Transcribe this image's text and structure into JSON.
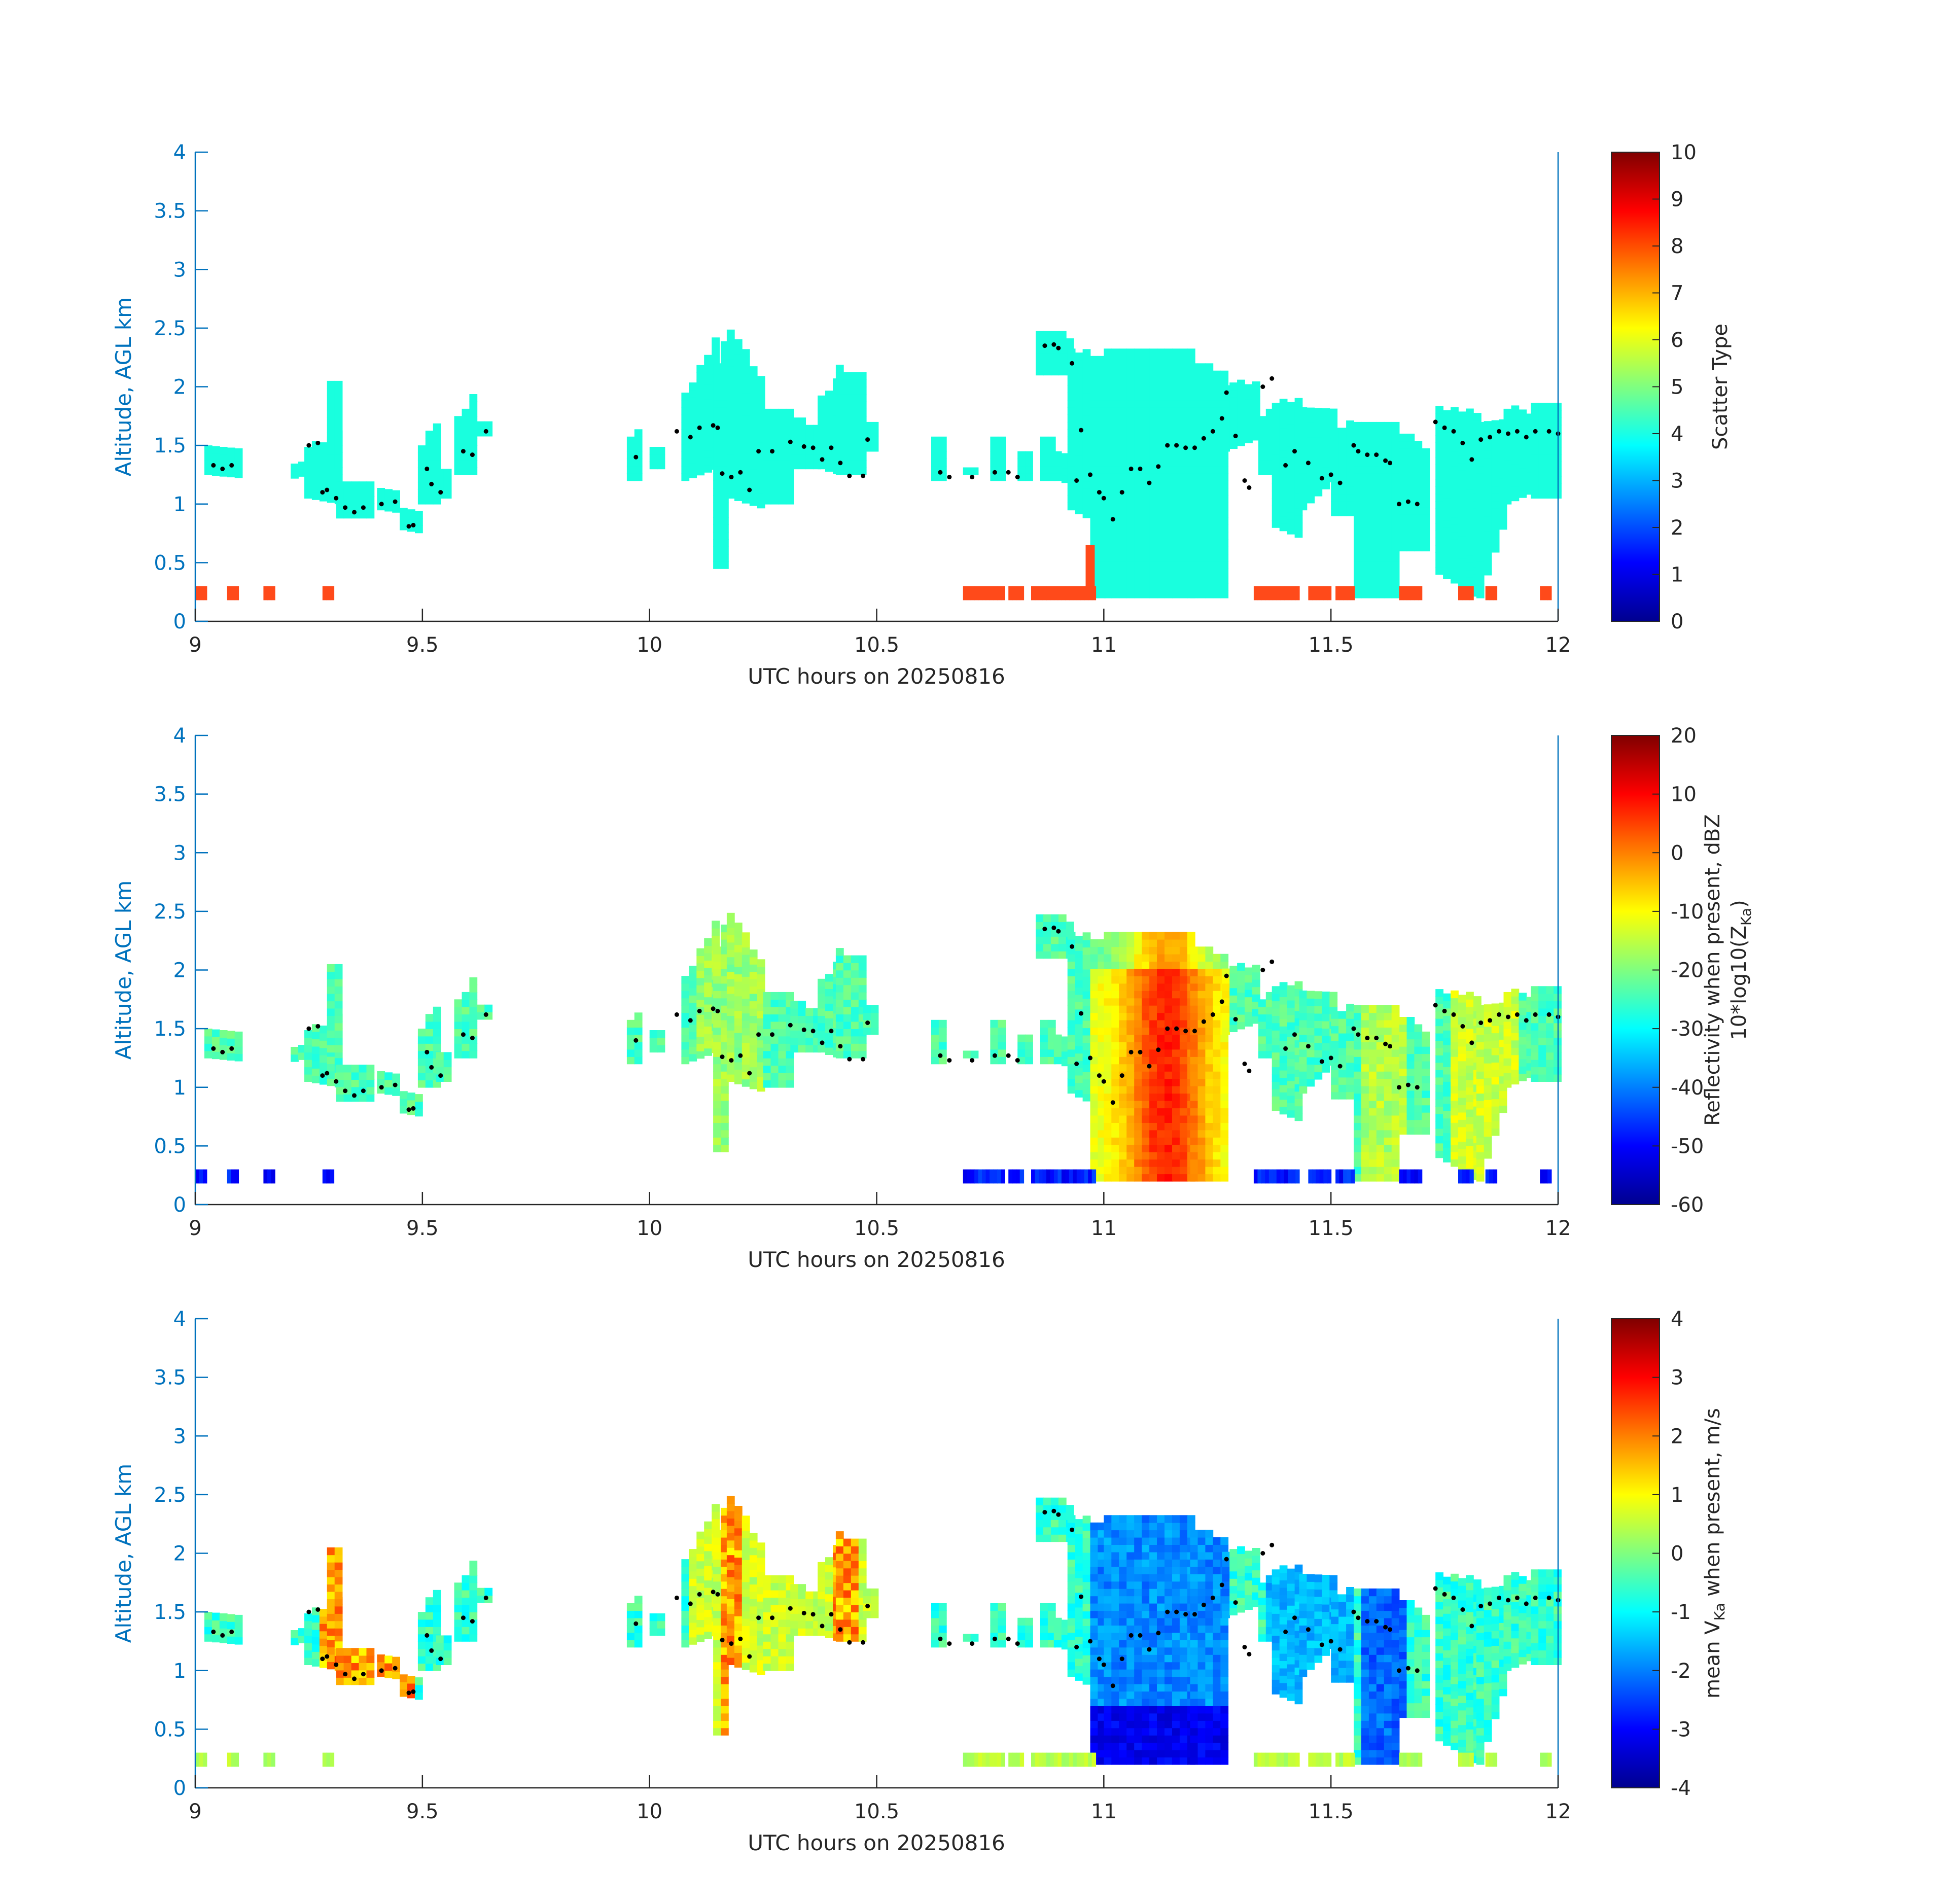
{
  "chart_data": [
    {
      "type": "heatmap",
      "xlabel": "UTC hours on 20250816",
      "ylabel": "Altitude, AGL km",
      "xlim": [
        9,
        12
      ],
      "ylim": [
        0,
        4
      ],
      "xticks": [
        "9",
        "9.5",
        "10",
        "10.5",
        "11",
        "11.5",
        "12"
      ],
      "yticks": [
        "0",
        "0.5",
        "1",
        "1.5",
        "2",
        "2.5",
        "3",
        "3.5",
        "4"
      ],
      "colorbar": {
        "label_lines": [
          "Scatter Type"
        ],
        "range": [
          0,
          10
        ],
        "ticks": [
          "0",
          "1",
          "2",
          "3",
          "4",
          "5",
          "6",
          "7",
          "8",
          "9",
          "10"
        ],
        "colormap": "jet"
      },
      "fields": "scatter type 4 (cloud) throughout echo; type ~8 in low-level clutter and near cloud base"
    },
    {
      "type": "heatmap",
      "xlabel": "UTC hours on 20250816",
      "ylabel": "Altitude, AGL km",
      "xlim": [
        9,
        12
      ],
      "ylim": [
        0,
        4
      ],
      "xticks": [
        "9",
        "9.5",
        "10",
        "10.5",
        "11",
        "11.5",
        "12"
      ],
      "yticks": [
        "0",
        "0.5",
        "1",
        "1.5",
        "2",
        "2.5",
        "3",
        "3.5",
        "4"
      ],
      "colorbar": {
        "label_lines": [
          "Reflectivity when present, dBZ",
          "10*log10(Z",
          "Ka",
          ")"
        ],
        "range": [
          -60,
          20
        ],
        "ticks": [
          "-60",
          "-50",
          "-40",
          "-30",
          "-20",
          "-10",
          "0",
          "10",
          "20"
        ],
        "colormap": "jet"
      },
      "peak_dbz_near_11_1_utc": 5
    },
    {
      "type": "heatmap",
      "xlabel": "UTC hours on 20250816",
      "ylabel": "Altitude, AGL km",
      "xlim": [
        9,
        12
      ],
      "ylim": [
        0,
        4
      ],
      "xticks": [
        "9",
        "9.5",
        "10",
        "10.5",
        "11",
        "11.5",
        "12"
      ],
      "yticks": [
        "0",
        "0.5",
        "1",
        "1.5",
        "2",
        "2.5",
        "3",
        "3.5",
        "4"
      ],
      "colorbar": {
        "label_lines": [
          "mean V",
          "Ka",
          " when present, m/s"
        ],
        "range": [
          -4,
          4
        ],
        "ticks": [
          "-4",
          "-3",
          "-2",
          "-1",
          "0",
          "1",
          "2",
          "3",
          "4"
        ],
        "colormap": "jet"
      },
      "min_velocity_near_11_1_utc": -3.5
    }
  ],
  "cloud_base_points": [
    [
      9.04,
      1.33
    ],
    [
      9.06,
      1.3
    ],
    [
      9.08,
      1.33
    ],
    [
      9.25,
      1.5
    ],
    [
      9.27,
      1.52
    ],
    [
      9.28,
      1.1
    ],
    [
      9.29,
      1.12
    ],
    [
      9.31,
      1.05
    ],
    [
      9.33,
      0.97
    ],
    [
      9.35,
      0.93
    ],
    [
      9.37,
      0.97
    ],
    [
      9.41,
      1.0
    ],
    [
      9.44,
      1.02
    ],
    [
      9.47,
      0.81
    ],
    [
      9.48,
      0.82
    ],
    [
      9.51,
      1.3
    ],
    [
      9.52,
      1.17
    ],
    [
      9.54,
      1.1
    ],
    [
      9.59,
      1.45
    ],
    [
      9.61,
      1.42
    ],
    [
      9.64,
      1.62
    ],
    [
      9.97,
      1.4
    ],
    [
      10.06,
      1.62
    ],
    [
      10.09,
      1.57
    ],
    [
      10.11,
      1.65
    ],
    [
      10.14,
      1.67
    ],
    [
      10.15,
      1.65
    ],
    [
      10.16,
      1.26
    ],
    [
      10.18,
      1.23
    ],
    [
      10.2,
      1.27
    ],
    [
      10.22,
      1.12
    ],
    [
      10.24,
      1.45
    ],
    [
      10.27,
      1.45
    ],
    [
      10.31,
      1.53
    ],
    [
      10.34,
      1.49
    ],
    [
      10.36,
      1.48
    ],
    [
      10.38,
      1.38
    ],
    [
      10.4,
      1.48
    ],
    [
      10.42,
      1.35
    ],
    [
      10.44,
      1.24
    ],
    [
      10.47,
      1.24
    ],
    [
      10.48,
      1.55
    ],
    [
      10.64,
      1.27
    ],
    [
      10.66,
      1.23
    ],
    [
      10.71,
      1.23
    ],
    [
      10.76,
      1.27
    ],
    [
      10.79,
      1.27
    ],
    [
      10.81,
      1.23
    ],
    [
      10.87,
      2.35
    ],
    [
      10.89,
      2.36
    ],
    [
      10.9,
      2.33
    ],
    [
      10.93,
      2.2
    ],
    [
      10.94,
      1.2
    ],
    [
      10.95,
      1.63
    ],
    [
      10.97,
      1.25
    ],
    [
      10.99,
      1.1
    ],
    [
      11.0,
      1.05
    ],
    [
      11.02,
      0.87
    ],
    [
      11.04,
      1.1
    ],
    [
      11.06,
      1.3
    ],
    [
      11.08,
      1.3
    ],
    [
      11.1,
      1.18
    ],
    [
      11.12,
      1.32
    ],
    [
      11.14,
      1.5
    ],
    [
      11.16,
      1.5
    ],
    [
      11.18,
      1.48
    ],
    [
      11.2,
      1.48
    ],
    [
      11.22,
      1.56
    ],
    [
      11.24,
      1.62
    ],
    [
      11.26,
      1.73
    ],
    [
      11.27,
      1.95
    ],
    [
      11.29,
      1.58
    ],
    [
      11.31,
      1.2
    ],
    [
      11.32,
      1.14
    ],
    [
      11.35,
      2.0
    ],
    [
      11.37,
      2.07
    ],
    [
      11.4,
      1.33
    ],
    [
      11.42,
      1.45
    ],
    [
      11.45,
      1.35
    ],
    [
      11.48,
      1.22
    ],
    [
      11.5,
      1.25
    ],
    [
      11.52,
      1.18
    ],
    [
      11.55,
      1.5
    ],
    [
      11.56,
      1.45
    ],
    [
      11.58,
      1.42
    ],
    [
      11.6,
      1.42
    ],
    [
      11.62,
      1.37
    ],
    [
      11.63,
      1.35
    ],
    [
      11.65,
      1.0
    ],
    [
      11.67,
      1.02
    ],
    [
      11.69,
      1.0
    ],
    [
      11.73,
      1.7
    ],
    [
      11.75,
      1.65
    ],
    [
      11.77,
      1.62
    ],
    [
      11.79,
      1.52
    ],
    [
      11.81,
      1.38
    ],
    [
      11.83,
      1.55
    ],
    [
      11.85,
      1.57
    ],
    [
      11.87,
      1.62
    ],
    [
      11.89,
      1.6
    ],
    [
      11.91,
      1.62
    ],
    [
      11.93,
      1.57
    ],
    [
      11.95,
      1.62
    ],
    [
      11.98,
      1.62
    ],
    [
      12.0,
      1.6
    ]
  ],
  "cloud_base_color": "#000000",
  "axis_color": "#0072bd",
  "label_color": "#262626"
}
